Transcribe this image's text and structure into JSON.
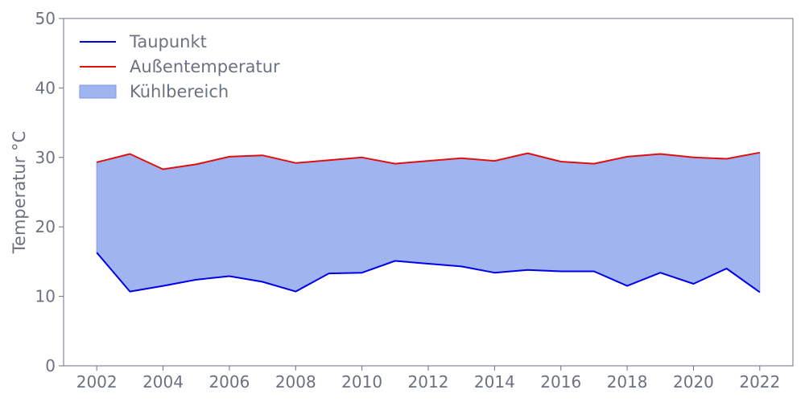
{
  "chart_data": {
    "type": "area",
    "title": "",
    "xlabel": "",
    "ylabel": "Temperatur °C",
    "xlim": [
      2001,
      2023
    ],
    "ylim": [
      0,
      50
    ],
    "x_ticks": [
      2002,
      2004,
      2006,
      2008,
      2010,
      2012,
      2014,
      2016,
      2018,
      2020,
      2022
    ],
    "y_ticks": [
      0,
      10,
      20,
      30,
      40,
      50
    ],
    "grid": false,
    "legend_position": "top-left",
    "x": [
      2002,
      2003,
      2004,
      2005,
      2006,
      2007,
      2008,
      2009,
      2010,
      2011,
      2012,
      2013,
      2014,
      2015,
      2016,
      2017,
      2018,
      2019,
      2020,
      2021,
      2022
    ],
    "series": [
      {
        "name": "Taupunkt",
        "color": "#0000e6",
        "values": [
          16.3,
          10.7,
          11.5,
          12.4,
          12.9,
          12.1,
          10.7,
          13.3,
          13.4,
          15.1,
          14.7,
          14.3,
          13.4,
          13.8,
          13.6,
          13.6,
          11.5,
          13.4,
          11.8,
          14.0,
          10.6
        ]
      },
      {
        "name": "Außentemperatur",
        "color": "#e01010",
        "values": [
          29.3,
          30.5,
          28.3,
          29.0,
          30.1,
          30.3,
          29.2,
          29.6,
          30.0,
          29.1,
          29.5,
          29.9,
          29.5,
          30.6,
          29.4,
          29.1,
          30.1,
          30.5,
          30.0,
          29.8,
          30.7
        ]
      }
    ],
    "fill_band": {
      "name": "Kühlbereich",
      "color": "#a0b4f0",
      "edge_color": "#7f99e6",
      "lower": "Taupunkt",
      "upper": "Außentemperatur"
    }
  }
}
